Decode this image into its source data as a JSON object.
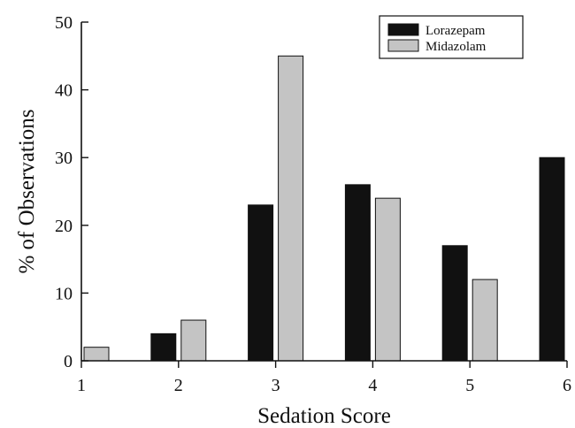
{
  "chart_data": {
    "type": "bar",
    "title": "",
    "xlabel": "Sedation Score",
    "ylabel": "% of Observations",
    "x_ticks": [
      1,
      2,
      3,
      4,
      5,
      6
    ],
    "y_ticks": [
      0,
      10,
      20,
      30,
      40,
      50
    ],
    "xlim": [
      1,
      6
    ],
    "ylim": [
      0,
      50
    ],
    "grid": false,
    "legend_position": "top-right",
    "series": [
      {
        "name": "Lorazepam",
        "color": "#111111",
        "points": [
          {
            "x": 2,
            "y": 4
          },
          {
            "x": 3,
            "y": 23
          },
          {
            "x": 4,
            "y": 26
          },
          {
            "x": 5,
            "y": 17
          },
          {
            "x": 6,
            "y": 30
          }
        ]
      },
      {
        "name": "Midazolam",
        "color": "#c4c4c4",
        "points": [
          {
            "x": 1,
            "y": 2
          },
          {
            "x": 2,
            "y": 6
          },
          {
            "x": 3,
            "y": 45
          },
          {
            "x": 4,
            "y": 24
          },
          {
            "x": 5,
            "y": 12
          }
        ]
      }
    ]
  }
}
